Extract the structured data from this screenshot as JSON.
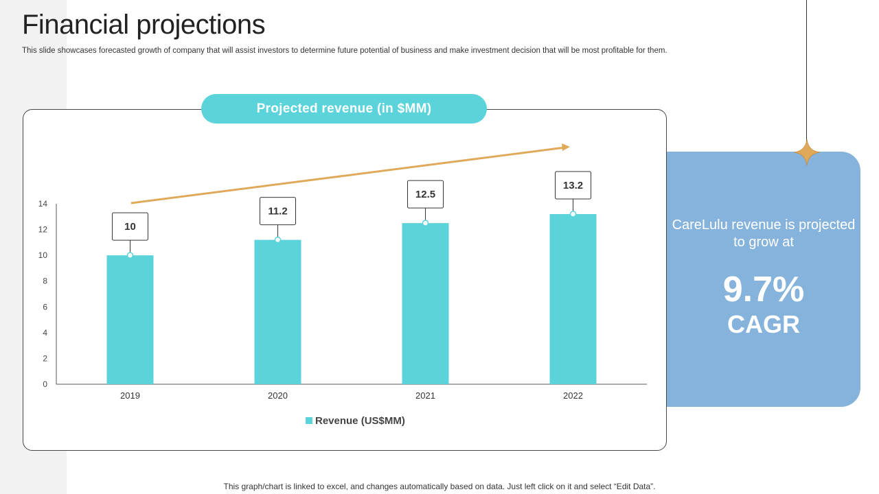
{
  "slide": {
    "title": "Financial projections",
    "subtitle": "This slide showcases forecasted growth of company that will assist investors to determine future potential of business and make investment decision that will be most profitable for them.",
    "footer": "This graph/chart is linked to excel, and changes automatically based on data. Just left click on it and select “Edit Data”."
  },
  "chart_header": "Projected revenue (in $MM)",
  "side_panel": {
    "text": "CareLulu revenue is projected to grow at",
    "percent": "9.7%",
    "label": "CAGR"
  },
  "colors": {
    "bar": "#5bd3da",
    "arrow": "#e0a95a",
    "panel": "#86b3dc",
    "star": "#e0a95a"
  },
  "icons": {
    "star": "four-point-star-icon",
    "arrow": "trend-arrow-icon"
  },
  "chart_data": {
    "type": "bar",
    "title": "Projected revenue (in $MM)",
    "categories": [
      "2019",
      "2020",
      "2021",
      "2022"
    ],
    "series": [
      {
        "name": "Revenue (US$MM)",
        "values": [
          10,
          11.2,
          12.5,
          13.2
        ]
      }
    ],
    "data_labels": [
      "10",
      "11.2",
      "12.5",
      "13.2"
    ],
    "yticks": [
      0,
      2,
      4,
      6,
      8,
      10,
      12,
      14
    ],
    "ylim": [
      0,
      14
    ],
    "xlabel": "",
    "ylabel": "",
    "legend": "bottom-center",
    "grid": false
  }
}
